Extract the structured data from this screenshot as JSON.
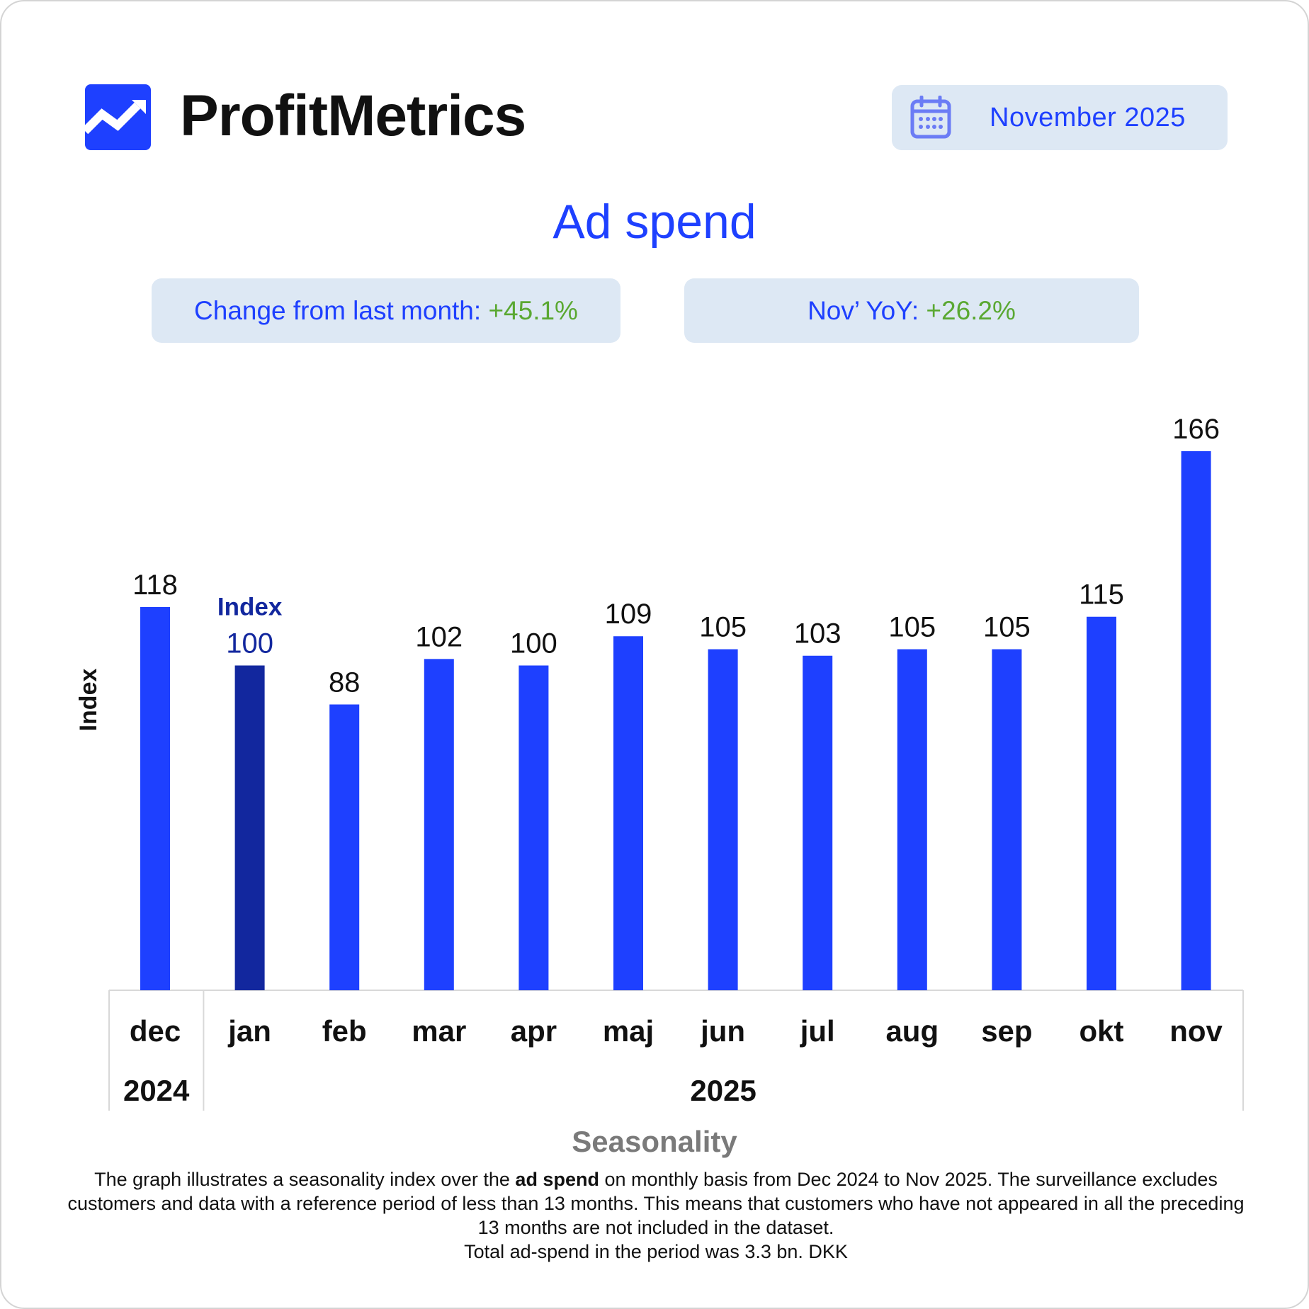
{
  "header": {
    "brand": "ProfitMetrics",
    "logo_icon": "trend-chart-logo-icon",
    "date_icon": "calendar-icon",
    "date_label": "November 2025"
  },
  "title": "Ad spend",
  "kpis": {
    "mom_label": "Change from last month:",
    "mom_value": "+45.1%",
    "yoy_label": "Nov’ YoY:",
    "yoy_value": "+26.2%"
  },
  "colors": {
    "bar": "#1e40ff",
    "bar_highlight": "#12279e",
    "accent": "#1e40ff",
    "positive": "#5aa832",
    "pill_bg": "#dde8f4"
  },
  "chart_data": {
    "type": "bar",
    "ylabel": "Index",
    "categories": [
      "dec",
      "jan",
      "feb",
      "mar",
      "apr",
      "maj",
      "jun",
      "jul",
      "aug",
      "sep",
      "okt",
      "nov"
    ],
    "values": [
      118,
      100,
      88,
      102,
      100,
      109,
      105,
      103,
      105,
      105,
      115,
      166
    ],
    "highlight_index": 1,
    "highlight_annotation": "Index",
    "year_groups": [
      {
        "label": "2024",
        "span": 1
      },
      {
        "label": "2025",
        "span": 11
      }
    ],
    "grid": false,
    "legend": "none"
  },
  "footer": {
    "heading": "Seasonality",
    "line1_pre": "The graph illustrates a seasonality index over the ",
    "line1_bold": "ad spend",
    "line1_post": " on monthly basis from Dec 2024 to Nov 2025. The surveillance excludes customers and data with a reference period of less than 13 months. This means that customers who have not appeared in all the preceding 13 months are not included in the dataset.",
    "line2": "Total ad-spend in the period was 3.3 bn. DKK"
  }
}
